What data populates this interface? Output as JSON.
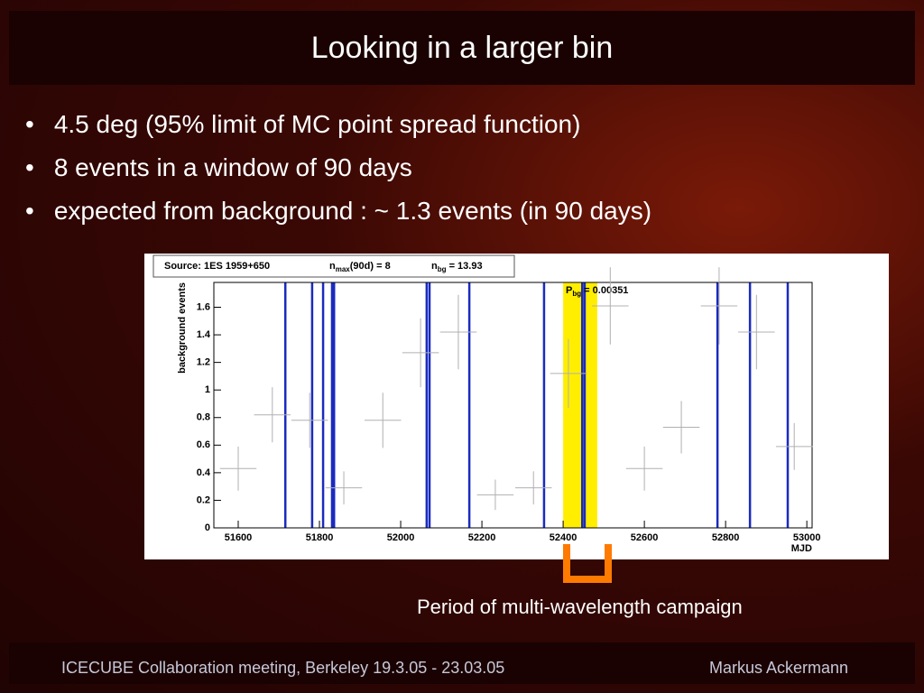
{
  "slide": {
    "title": "Looking in a larger bin",
    "bullets": [
      "4.5 deg (95% limit of MC point spread function)",
      "8 events in a window of 90 days",
      "expected from background : ~ 1.3  events (in 90 days)"
    ],
    "caption": "Period of multi-wavelength campaign",
    "footer_left": "ICECUBE Collaboration meeting, Berkeley 19.3.05 - 23.03.05",
    "footer_right": "Markus Ackermann"
  },
  "chart_data": {
    "type": "errorbar",
    "info": {
      "source": "Source: 1ES 1959+650",
      "nmax": {
        "symbol": "n",
        "subscript": "max",
        "text": "(90d) = 8"
      },
      "nbg": {
        "symbol": "n",
        "subscript": "bg",
        "text": " = 13.93"
      }
    },
    "pbg": {
      "symbol": "P",
      "subscript": "bg",
      "text": " =  0.00351"
    },
    "y_label": "background events",
    "x_label": "MJD",
    "x": [
      51600,
      51684,
      51776,
      51860,
      51956,
      52049,
      52142,
      52233,
      52327,
      52413,
      52516,
      52600,
      52691,
      52784,
      52876,
      52969
    ],
    "values": [
      0.43,
      0.82,
      0.78,
      0.29,
      0.78,
      1.27,
      1.42,
      0.24,
      0.29,
      1.12,
      1.61,
      0.43,
      0.73,
      1.61,
      1.42,
      0.59
    ],
    "xerr": [
      45,
      45,
      45,
      45,
      45,
      45,
      45,
      45,
      45,
      45,
      45,
      45,
      45,
      45,
      45,
      45
    ],
    "yerr": [
      0.16,
      0.2,
      0.2,
      0.12,
      0.2,
      0.25,
      0.27,
      0.11,
      0.12,
      0.25,
      0.28,
      0.16,
      0.19,
      0.28,
      0.27,
      0.17
    ],
    "color": "#b0b0b0",
    "events": [
      51716,
      51782,
      51809,
      51831,
      51836,
      52064,
      52071,
      52169,
      52353,
      52447,
      52453,
      52780,
      52860,
      52953
    ],
    "event_color": "#1a2bc0",
    "highlight": [
      52400,
      52484
    ],
    "highlight_color": "#ffee00",
    "xlim": [
      51540,
      53013
    ],
    "ylim": [
      0,
      1.78
    ],
    "xticks": [
      51600,
      51800,
      52000,
      52200,
      52400,
      52600,
      52800,
      53000
    ],
    "yticks": [
      0,
      0.2,
      0.4,
      0.6,
      0.8,
      1,
      1.2,
      1.4,
      1.6
    ]
  }
}
